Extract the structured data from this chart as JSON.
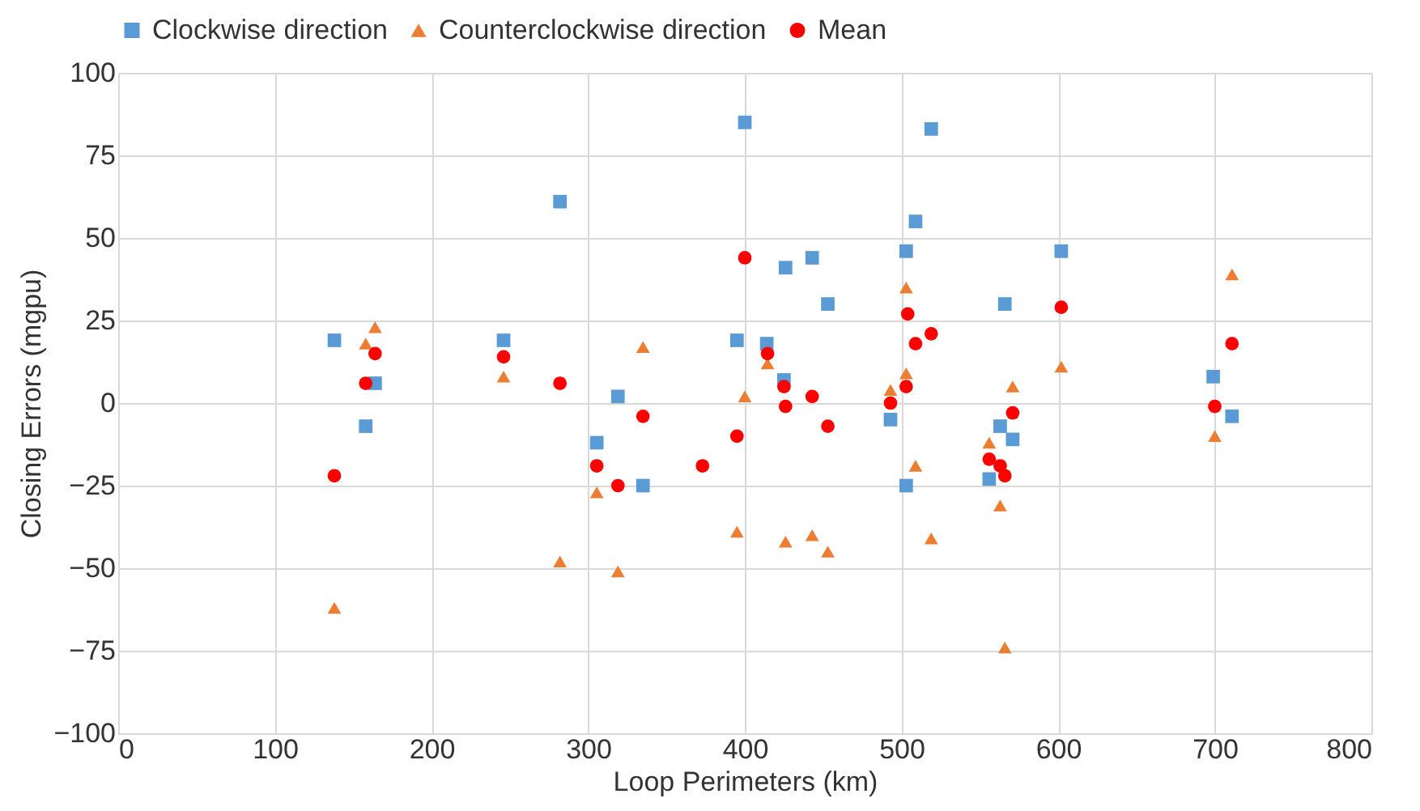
{
  "chart_data": {
    "type": "scatter",
    "xlabel": "Loop Perimeters (km)",
    "ylabel": "Closing Errors (mgpu)",
    "xlim": [
      0,
      800
    ],
    "xticks": [
      0,
      100,
      200,
      300,
      400,
      500,
      600,
      700,
      800
    ],
    "ylim": [
      -100,
      100
    ],
    "yticks": [
      -100,
      -75,
      -50,
      -25,
      0,
      25,
      50,
      75,
      100
    ],
    "grid": true,
    "legend": "top",
    "series": [
      {
        "name": "Clockwise direction",
        "color": "#5b9bd5",
        "marker": "square",
        "x": [
          138,
          158,
          164,
          246,
          282,
          305.5,
          319,
          335,
          373,
          395,
          400,
          414,
          425,
          426,
          443,
          453,
          493,
          503,
          503,
          509,
          519,
          556,
          563,
          566,
          571,
          602,
          699,
          711
        ],
        "values": [
          19,
          -7,
          6,
          19,
          61,
          -12,
          2,
          -25,
          null,
          19,
          85,
          18,
          7,
          41,
          44,
          30,
          -5,
          -25,
          46,
          55,
          83,
          -23,
          -7,
          30,
          -11,
          46,
          8,
          -4
        ]
      },
      {
        "name": "Counterclockwise direction",
        "color": "#ed7d31",
        "marker": "triangle",
        "x": [
          138,
          158,
          164,
          246,
          282,
          305.5,
          319,
          335,
          373,
          395,
          400,
          414.5,
          426,
          443,
          453,
          493,
          503,
          503,
          509,
          519,
          556,
          563,
          566,
          571,
          602,
          700,
          711
        ],
        "values": [
          -62,
          18,
          23,
          8,
          -48,
          -27,
          -51,
          17,
          null,
          -39,
          2,
          12,
          -42,
          -40,
          -45,
          4,
          35,
          9,
          -19,
          -41,
          -12,
          -31,
          -74,
          5,
          11,
          -10,
          39
        ]
      },
      {
        "name": "Mean",
        "color": "#ff0000",
        "marker": "circle",
        "x": [
          138,
          158,
          164,
          246,
          282,
          305.5,
          319,
          335,
          373,
          395,
          400,
          414.5,
          425,
          426,
          443,
          453,
          493,
          503,
          504,
          509,
          519,
          556,
          563,
          566,
          571,
          602,
          700,
          711
        ],
        "values": [
          -22,
          6,
          15,
          14,
          6,
          -19,
          -25,
          -4,
          -19,
          -10,
          44,
          15,
          5,
          -1,
          2,
          -7,
          0,
          5,
          27,
          18,
          21,
          -17,
          -19,
          -22,
          -3,
          29,
          -1,
          18
        ]
      }
    ]
  }
}
